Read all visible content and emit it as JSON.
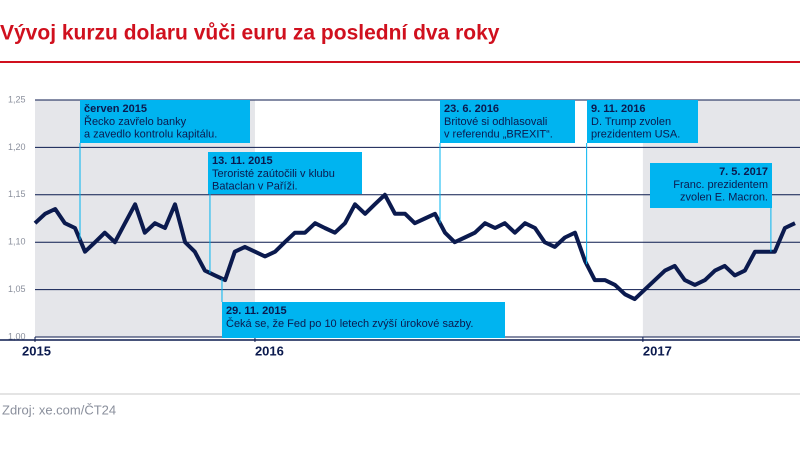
{
  "chart_data": {
    "type": "line",
    "title": "Vývoj kurzu dolaru vůči euru za poslední dva roky",
    "source": "Zdroj: xe.com/ČT24",
    "x": [
      2015.433,
      2015.459,
      2015.485,
      2015.51,
      2015.536,
      2015.562,
      2015.588,
      2015.613,
      2015.639,
      2015.665,
      2015.691,
      2015.716,
      2015.742,
      2015.768,
      2015.794,
      2015.82,
      2015.845,
      2015.871,
      2015.897,
      2015.923,
      2015.948,
      2015.974,
      2016.0,
      2016.026,
      2016.052,
      2016.077,
      2016.103,
      2016.129,
      2016.155,
      2016.18,
      2016.206,
      2016.232,
      2016.258,
      2016.284,
      2016.309,
      2016.335,
      2016.361,
      2016.387,
      2016.412,
      2016.438,
      2016.464,
      2016.49,
      2016.515,
      2016.541,
      2016.567,
      2016.593,
      2016.619,
      2016.644,
      2016.67,
      2016.696,
      2016.722,
      2016.747,
      2016.773,
      2016.799,
      2016.825,
      2016.851,
      2016.876,
      2016.902,
      2016.928,
      2016.954,
      2016.979,
      2017.005,
      2017.031,
      2017.057,
      2017.082,
      2017.108,
      2017.134,
      2017.16,
      2017.186,
      2017.211,
      2017.237,
      2017.263,
      2017.289,
      2017.314,
      2017.34,
      2017.366,
      2017.392
    ],
    "values": [
      1.12,
      1.13,
      1.135,
      1.12,
      1.115,
      1.09,
      1.1,
      1.11,
      1.1,
      1.12,
      1.14,
      1.11,
      1.12,
      1.115,
      1.14,
      1.1,
      1.09,
      1.07,
      1.065,
      1.06,
      1.09,
      1.095,
      1.09,
      1.085,
      1.09,
      1.1,
      1.11,
      1.11,
      1.12,
      1.115,
      1.11,
      1.12,
      1.14,
      1.13,
      1.14,
      1.15,
      1.13,
      1.13,
      1.12,
      1.125,
      1.13,
      1.11,
      1.1,
      1.105,
      1.11,
      1.12,
      1.115,
      1.12,
      1.11,
      1.12,
      1.115,
      1.1,
      1.095,
      1.105,
      1.11,
      1.08,
      1.06,
      1.06,
      1.055,
      1.045,
      1.04,
      1.05,
      1.06,
      1.07,
      1.075,
      1.06,
      1.055,
      1.06,
      1.07,
      1.075,
      1.065,
      1.07,
      1.09,
      1.09,
      1.09,
      1.115,
      1.12
    ],
    "color": "#0b1a4e",
    "xlim": [
      2015.433,
      2017.405
    ],
    "xticks": [
      {
        "value": 2015.433,
        "label": "2015"
      },
      2016,
      2017
    ],
    "ylim": [
      1.0,
      1.25
    ],
    "yticks": [
      {
        "value": 1.0,
        "label": "1,00"
      },
      {
        "value": 1.05,
        "label": "1,05"
      },
      {
        "value": 1.1,
        "label": "1,10"
      },
      {
        "value": 1.15,
        "label": "1,15"
      },
      {
        "value": 1.2,
        "label": "1,20"
      },
      {
        "value": 1.25,
        "label": "1,25"
      }
    ],
    "grid": true,
    "shade_color": "#e5e6ea",
    "annotations": [
      {
        "x": 2015.549,
        "date": "červen 2015",
        "lines": [
          "Řecko zavřelo banky",
          "a zavedlo kontrolu kapitálu."
        ]
      },
      {
        "x": 2015.884,
        "date": "13. 11. 2015",
        "lines": [
          "Teroristé zaútočili v klubu",
          "Bataclan v Paříži."
        ]
      },
      {
        "x": 2015.915,
        "date": "29. 11. 2015",
        "lines": [
          "Čeká se, že Fed po 10 letech zvýší úrokové sazby."
        ]
      },
      {
        "x": 2016.477,
        "date": "23. 6. 2016",
        "lines": [
          "Britové si odhlasovali",
          "v referendu „BREXIT“."
        ]
      },
      {
        "x": 2016.855,
        "date": "9. 11. 2016",
        "lines": [
          "D. Trump zvolen",
          "prezidentem USA."
        ]
      },
      {
        "x": 2017.33,
        "date": "7. 5. 2017",
        "lines": [
          "Franc. prezidentem",
          "zvolen E. Macron."
        ]
      }
    ]
  }
}
